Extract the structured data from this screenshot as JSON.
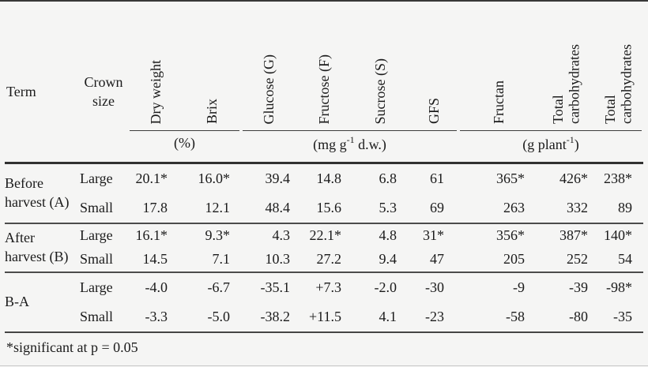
{
  "page_background": "#f5f5f4",
  "rule_color_dark": "#313131",
  "rule_color_mid": "#4c4c4c",
  "table": {
    "header": {
      "term": "Term",
      "crown": "Crown size",
      "rotated": [
        "Dry weight",
        "Brix",
        "Glucose (G)",
        "Fructose (F)",
        "Sucrose (S)",
        "GFS",
        "Fructan",
        "Total carbohydrates",
        "Total carbohydrates"
      ]
    },
    "units": {
      "percent": {
        "label": "(%)"
      },
      "mg": {
        "pre": "(mg g",
        "sup": "-1",
        "post": " d.w.)"
      },
      "gplant": {
        "pre": "(g plant",
        "sup": "-1",
        "post": ")"
      }
    },
    "sections": [
      {
        "term": "Before harvest (A)",
        "rows": [
          {
            "crown": "Large",
            "values": [
              "20.1*",
              "16.0*",
              "39.4",
              "14.8",
              "6.8",
              "61",
              "365*",
              "426*",
              "238*"
            ]
          },
          {
            "crown": "Small",
            "values": [
              "17.8",
              "12.1",
              "48.4",
              "15.6",
              "5.3",
              "69",
              "263",
              "332",
              "89"
            ]
          }
        ]
      },
      {
        "term": "After harvest (B)",
        "rows": [
          {
            "crown": "Large",
            "values": [
              "16.1*",
              "9.3*",
              "4.3",
              "22.1*",
              "4.8",
              "31*",
              "356*",
              "387*",
              "140*"
            ]
          },
          {
            "crown": "Small",
            "values": [
              "14.5",
              "7.1",
              "10.3",
              "27.2",
              "9.4",
              "47",
              "205",
              "252",
              "54"
            ]
          }
        ]
      },
      {
        "term": "B-A",
        "rows": [
          {
            "crown": "Large",
            "values": [
              "-4.0",
              "-6.7",
              "-35.1",
              "+7.3",
              "-2.0",
              "-30",
              "-9",
              "-39",
              "-98*"
            ]
          },
          {
            "crown": "Small",
            "values": [
              "-3.3",
              "-5.0",
              "-38.2",
              "+11.5",
              "4.1",
              "-23",
              "-58",
              "-80",
              "-35"
            ]
          }
        ]
      }
    ],
    "footnote": "*significant at p = 0.05"
  }
}
